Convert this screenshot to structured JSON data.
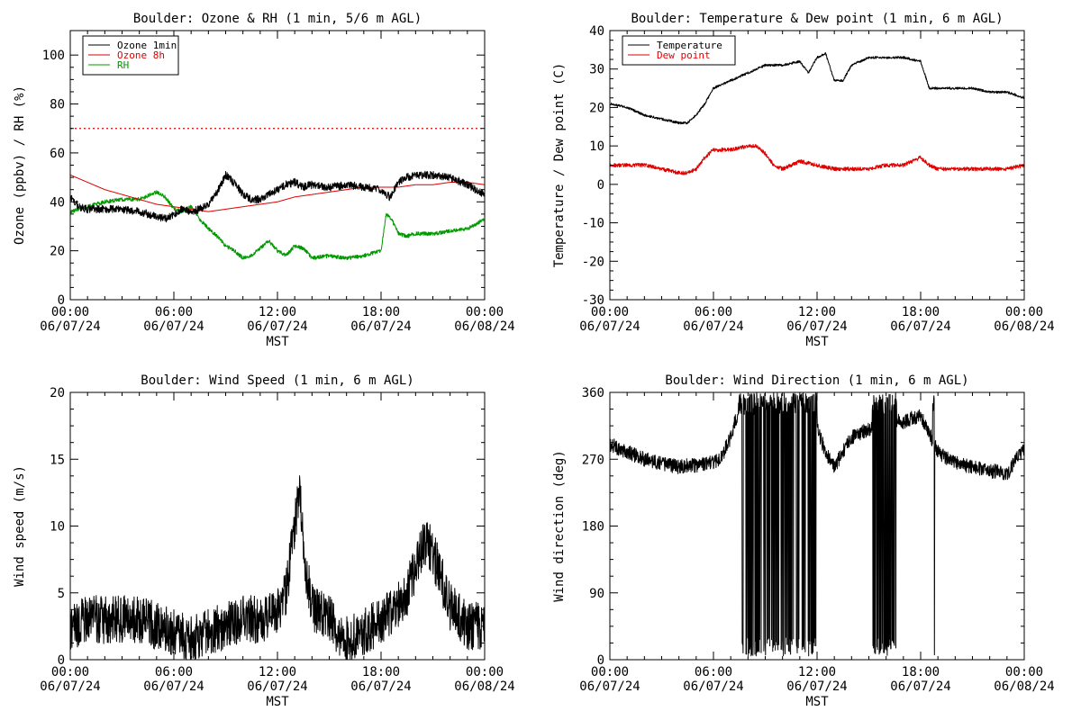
{
  "chart_data": [
    {
      "id": "ozone",
      "type": "line",
      "title": "Boulder: Ozone & RH (1 min, 5/6 m AGL)",
      "ylabel": "Ozone (ppbv) / RH (%)",
      "xlabel": "MST",
      "xlim": [
        0,
        24
      ],
      "ylim": [
        0,
        110
      ],
      "yticks": [
        0,
        20,
        40,
        60,
        80,
        100
      ],
      "xticks": [
        {
          "time": "00:00",
          "date": "06/07/24"
        },
        {
          "time": "06:00",
          "date": "06/07/24"
        },
        {
          "time": "12:00",
          "date": "06/07/24"
        },
        {
          "time": "18:00",
          "date": "06/07/24"
        },
        {
          "time": "00:00",
          "date": "06/08/24"
        }
      ],
      "legend": {
        "position": "top-left",
        "entries": [
          {
            "name": "Ozone 1min",
            "color": "#000000"
          },
          {
            "name": "Ozone 8h",
            "color": "#e00000"
          },
          {
            "name": "RH",
            "color": "#009900"
          }
        ]
      },
      "reference_lines": [
        {
          "y": 70,
          "color": "#e00000",
          "style": "dotted"
        }
      ],
      "series": [
        {
          "name": "Ozone 1min",
          "color": "#000000",
          "noise": 1.6,
          "x": [
            0,
            0.5,
            1,
            2,
            3,
            4,
            5,
            5.5,
            6,
            6.5,
            7,
            7.5,
            8,
            8.5,
            9,
            9.3,
            9.6,
            10,
            10.5,
            11,
            11.5,
            12,
            12.5,
            13,
            13.5,
            14,
            15,
            16,
            17,
            18,
            18.5,
            19,
            19.5,
            20,
            21,
            22,
            23,
            23.5,
            24
          ],
          "y": [
            42,
            38,
            37,
            37,
            37,
            36,
            34,
            33,
            35,
            37,
            36,
            37,
            39,
            44,
            51,
            49,
            47,
            43,
            41,
            41,
            43,
            45,
            47,
            48,
            46,
            47,
            46,
            47,
            46,
            45,
            42,
            48,
            50,
            51,
            51,
            50,
            47,
            45,
            43
          ]
        },
        {
          "name": "Ozone 8h",
          "color": "#e00000",
          "noise": 0,
          "x": [
            0,
            1,
            2,
            3,
            4,
            5,
            6,
            7,
            8,
            9,
            10,
            11,
            12,
            13,
            14,
            15,
            16,
            17,
            18,
            19,
            20,
            21,
            22,
            23,
            24
          ],
          "y": [
            51,
            48,
            45,
            43,
            41,
            39,
            38,
            37,
            36,
            37,
            38,
            39,
            40,
            42,
            43,
            44,
            45,
            46,
            46,
            46,
            47,
            47,
            48,
            48,
            47
          ]
        },
        {
          "name": "RH",
          "color": "#009900",
          "noise": 0.8,
          "x": [
            0,
            0.5,
            1,
            2,
            3,
            4,
            5,
            5.5,
            6,
            6.5,
            7,
            7.5,
            8,
            8.5,
            9,
            9.5,
            10,
            10.5,
            11,
            11.5,
            12,
            12.5,
            13,
            13.5,
            14,
            15,
            16,
            17,
            18,
            18.3,
            18.6,
            19,
            19.5,
            20,
            21,
            22,
            23,
            23.5,
            24
          ],
          "y": [
            36,
            37,
            38,
            40,
            41,
            41,
            44,
            42,
            37,
            36,
            38,
            33,
            29,
            26,
            22,
            20,
            17,
            18,
            21,
            24,
            20,
            18,
            22,
            21,
            17,
            18,
            17,
            18,
            20,
            35,
            33,
            27,
            26,
            27,
            27,
            28,
            29,
            31,
            33
          ]
        }
      ]
    },
    {
      "id": "temperature",
      "type": "line",
      "title": "Boulder: Temperature & Dew point (1 min, 6 m AGL)",
      "ylabel": "Temperature / Dew point (C)",
      "xlabel": "MST",
      "xlim": [
        0,
        24
      ],
      "ylim": [
        -30,
        40
      ],
      "yticks": [
        -30,
        -20,
        -10,
        0,
        10,
        20,
        30,
        40
      ],
      "xticks": [
        {
          "time": "00:00",
          "date": "06/07/24"
        },
        {
          "time": "06:00",
          "date": "06/07/24"
        },
        {
          "time": "12:00",
          "date": "06/07/24"
        },
        {
          "time": "18:00",
          "date": "06/07/24"
        },
        {
          "time": "00:00",
          "date": "06/08/24"
        }
      ],
      "legend": {
        "position": "top-left",
        "entries": [
          {
            "name": "Temperature",
            "color": "#000000"
          },
          {
            "name": "Dew point",
            "color": "#e00000"
          }
        ]
      },
      "series": [
        {
          "name": "Temperature",
          "color": "#000000",
          "noise": 0.3,
          "x": [
            0,
            1,
            2,
            3,
            4,
            4.5,
            5,
            5.5,
            6,
            7,
            8,
            9,
            10,
            11,
            11.5,
            12,
            12.5,
            13,
            13.5,
            14,
            15,
            16,
            17,
            18,
            18.5,
            19,
            20,
            21,
            22,
            23,
            24
          ],
          "y": [
            21,
            20,
            18,
            17,
            16,
            16,
            18,
            21,
            25,
            27,
            29,
            31,
            31,
            32,
            29,
            33,
            34,
            27,
            27,
            31,
            33,
            33,
            33,
            32,
            25,
            25,
            25,
            25,
            24,
            24,
            22.5
          ]
        },
        {
          "name": "Dew point",
          "color": "#e00000",
          "noise": 0.5,
          "x": [
            0,
            1,
            2,
            3,
            4,
            4.5,
            5,
            5.5,
            6,
            7,
            8,
            8.5,
            9,
            9.5,
            10,
            11,
            12,
            13,
            14,
            15,
            16,
            17,
            18,
            18.5,
            19,
            20,
            21,
            22,
            23,
            24
          ],
          "y": [
            5,
            5,
            5,
            4,
            3,
            3,
            4,
            7,
            9,
            9,
            10,
            10,
            8,
            5,
            4,
            6,
            5,
            4,
            4,
            4,
            5,
            5,
            7,
            5,
            4,
            4,
            4,
            4,
            4,
            5
          ]
        }
      ]
    },
    {
      "id": "windspeed",
      "type": "line",
      "title": "Boulder: Wind Speed (1 min, 6 m AGL)",
      "ylabel": "Wind speed (m/s)",
      "xlabel": "MST",
      "xlim": [
        0,
        24
      ],
      "ylim": [
        0,
        20
      ],
      "yticks": [
        0,
        5,
        10,
        15,
        20
      ],
      "xticks": [
        {
          "time": "00:00",
          "date": "06/07/24"
        },
        {
          "time": "06:00",
          "date": "06/07/24"
        },
        {
          "time": "12:00",
          "date": "06/07/24"
        },
        {
          "time": "18:00",
          "date": "06/07/24"
        },
        {
          "time": "00:00",
          "date": "06/08/24"
        }
      ],
      "series": [
        {
          "name": "Wind speed",
          "color": "#000000",
          "noise": 1.8,
          "x": [
            0,
            1,
            2,
            3,
            4,
            5,
            6,
            7,
            8,
            9,
            10,
            11,
            12,
            12.5,
            13,
            13.3,
            13.6,
            14,
            15,
            16,
            17,
            18,
            19,
            19.5,
            20,
            20.5,
            21,
            21.5,
            22,
            23,
            24
          ],
          "y": [
            2.5,
            3,
            3,
            3,
            3,
            2.5,
            2,
            1.5,
            2,
            2.5,
            3,
            3,
            3.5,
            5,
            10,
            13,
            7,
            4,
            3,
            1.5,
            2,
            3,
            4,
            5,
            7,
            9,
            8,
            6,
            4,
            2.5,
            2.5
          ]
        }
      ]
    },
    {
      "id": "winddir",
      "type": "line",
      "title": "Boulder: Wind Direction (1 min, 6 m AGL)",
      "ylabel": "Wind direction (deg)",
      "xlabel": "MST",
      "xlim": [
        0,
        24
      ],
      "ylim": [
        0,
        360
      ],
      "yticks": [
        0,
        90,
        180,
        270,
        360
      ],
      "xticks": [
        {
          "time": "00:00",
          "date": "06/07/24"
        },
        {
          "time": "06:00",
          "date": "06/07/24"
        },
        {
          "time": "12:00",
          "date": "06/07/24"
        },
        {
          "time": "18:00",
          "date": "06/07/24"
        },
        {
          "time": "00:00",
          "date": "06/08/24"
        }
      ],
      "series": [
        {
          "name": "Wind direction",
          "color": "#000000",
          "noise": 10,
          "wrap_segments": [
            [
              7.5,
              12.0
            ],
            [
              15.2,
              16.6
            ],
            [
              18.7,
              18.8
            ]
          ],
          "x": [
            0,
            1,
            2,
            3,
            4,
            5,
            6,
            6.5,
            7,
            7.5,
            8,
            9,
            10,
            11,
            12,
            12.5,
            13,
            14,
            15,
            16,
            17,
            18,
            19,
            20,
            21,
            22,
            23,
            23.5,
            24
          ],
          "y": [
            290,
            280,
            270,
            265,
            260,
            262,
            265,
            275,
            300,
            340,
            350,
            345,
            330,
            320,
            310,
            280,
            260,
            300,
            310,
            330,
            320,
            330,
            280,
            265,
            260,
            255,
            250,
            270,
            285
          ]
        }
      ]
    }
  ]
}
